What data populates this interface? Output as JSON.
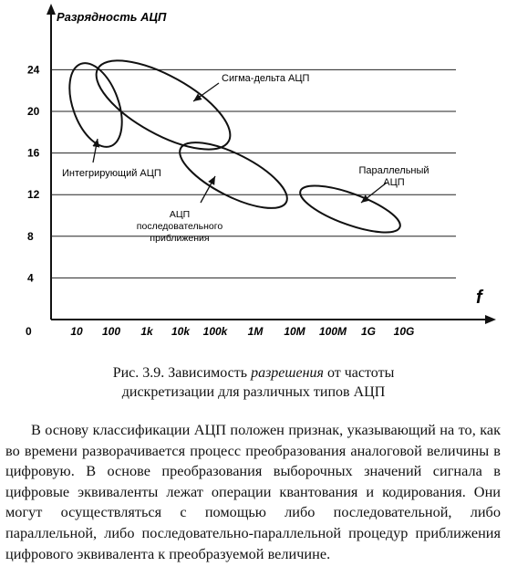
{
  "chart_data": {
    "type": "diagram",
    "ylabel": "Разрядность АЦП",
    "xlabel": "f",
    "y_ticks": [
      4,
      8,
      12,
      16,
      20,
      24
    ],
    "ylim": [
      0,
      27
    ],
    "origin_label": "0",
    "x_ticks": [
      "10",
      "100",
      "1k",
      "10k",
      "100k",
      "1M",
      "10M",
      "100M",
      "1G",
      "10G"
    ],
    "grid": "horizontal",
    "regions": [
      {
        "name": "Сигма-дельта АЦП",
        "x_range": [
          "100",
          "1M"
        ],
        "bits_range": [
          16.5,
          24.2
        ]
      },
      {
        "name": "Интегрирующий АЦП",
        "x_range": [
          "10",
          "100"
        ],
        "bits_range": [
          15.5,
          24
        ]
      },
      {
        "name": "АЦП последовательного приближения",
        "x_range": [
          "10k",
          "10M"
        ],
        "bits_range": [
          11,
          17
        ]
      },
      {
        "name": "Параллельный АЦП",
        "x_range": [
          "10M",
          "10G"
        ],
        "bits_range": [
          8,
          12.2
        ]
      }
    ]
  },
  "caption": {
    "prefix": "Рис. 3.9. Зависимость ",
    "emph": "разрешения",
    "suffix": " от частоты",
    "line2": "дискретизации для различных типов АЦП"
  },
  "paragraph": "В основу классификации АЦП положен признак, указывающий на то, как во времени разворачивается процесс преобразования аналоговой величины в цифровую. В основе преобразования выборочных значений сигнала в цифровые эквиваленты лежат операции квантования и кодирования. Они могут осуществляться с помощью либо последовательной, либо параллельной, либо последовательно-параллельной процедур приближения цифрового эквивалента к преобразуемой величине."
}
